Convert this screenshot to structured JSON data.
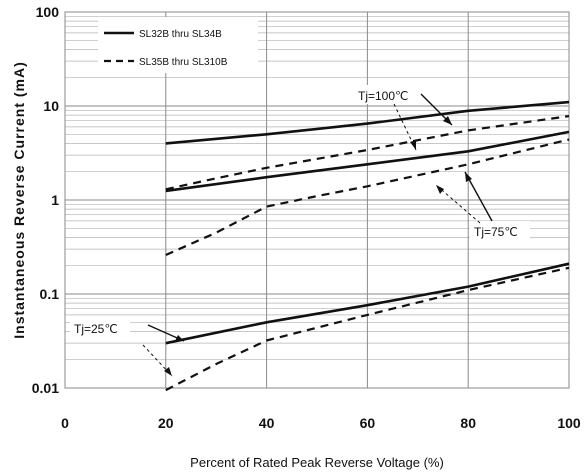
{
  "chart_data": {
    "type": "line",
    "xlabel": "Percent of  Rated Peak Reverse Voltage (%)",
    "ylabel": "Instantaneous Reverse Current (mA)",
    "xlim": [
      0,
      100
    ],
    "ylim": [
      0.01,
      100
    ],
    "yscale": "log",
    "grid": true,
    "legend_position": "top-left",
    "x_ticks": [
      0,
      20,
      40,
      60,
      80,
      100
    ],
    "x_tick_labels": [
      "0",
      "20",
      "40",
      "60",
      "80",
      "100"
    ],
    "y_ticks": [
      100,
      10,
      1,
      0.1,
      0.01
    ],
    "y_tick_labels": [
      "100",
      "10",
      "1",
      "0.1",
      "0.01"
    ],
    "legend": [
      {
        "label": "SL32B thru SL34B",
        "style": "solid"
      },
      {
        "label": "SL35B thru SL310B",
        "style": "dashed"
      }
    ],
    "series": [
      {
        "group": "SL32B thru SL34B",
        "condition": "Tj=100℃",
        "style": "solid",
        "x": [
          20,
          40,
          60,
          80,
          100
        ],
        "y": [
          4.0,
          5.0,
          6.5,
          8.9,
          11.0
        ]
      },
      {
        "group": "SL35B thru SL310B",
        "condition": "Tj=100℃",
        "style": "dashed",
        "x": [
          20,
          30,
          40,
          60,
          80,
          100
        ],
        "y": [
          1.3,
          1.7,
          2.2,
          3.4,
          5.5,
          7.8
        ]
      },
      {
        "group": "SL32B thru SL34B",
        "condition": "Tj=75℃",
        "style": "solid",
        "x": [
          20,
          40,
          60,
          80,
          100
        ],
        "y": [
          1.25,
          1.75,
          2.4,
          3.3,
          5.3
        ]
      },
      {
        "group": "SL35B thru SL310B",
        "condition": "Tj=75℃",
        "style": "dashed",
        "x": [
          20,
          30,
          40,
          50,
          60,
          80,
          100
        ],
        "y": [
          0.26,
          0.45,
          0.85,
          1.1,
          1.4,
          2.4,
          4.4
        ]
      },
      {
        "group": "SL32B thru SL34B",
        "condition": "Tj=25℃",
        "style": "solid",
        "x": [
          20,
          40,
          60,
          80,
          100
        ],
        "y": [
          0.03,
          0.05,
          0.076,
          0.12,
          0.21
        ]
      },
      {
        "group": "SL35B thru SL310B",
        "condition": "Tj=25℃",
        "style": "dashed",
        "x": [
          20,
          30,
          40,
          60,
          80,
          100
        ],
        "y": [
          0.0095,
          0.018,
          0.032,
          0.06,
          0.11,
          0.19
        ]
      }
    ],
    "annotations": [
      {
        "text": "Tj=100℃",
        "points_to": "Tj=100℃ curves"
      },
      {
        "text": "Tj=75℃",
        "points_to": "Tj=75℃ curves"
      },
      {
        "text": "Tj=25℃",
        "points_to": "Tj=25℃ curves"
      }
    ],
    "colors": {
      "line": "#111111",
      "grid": "#b5b5b5",
      "background": "#ffffff"
    }
  }
}
